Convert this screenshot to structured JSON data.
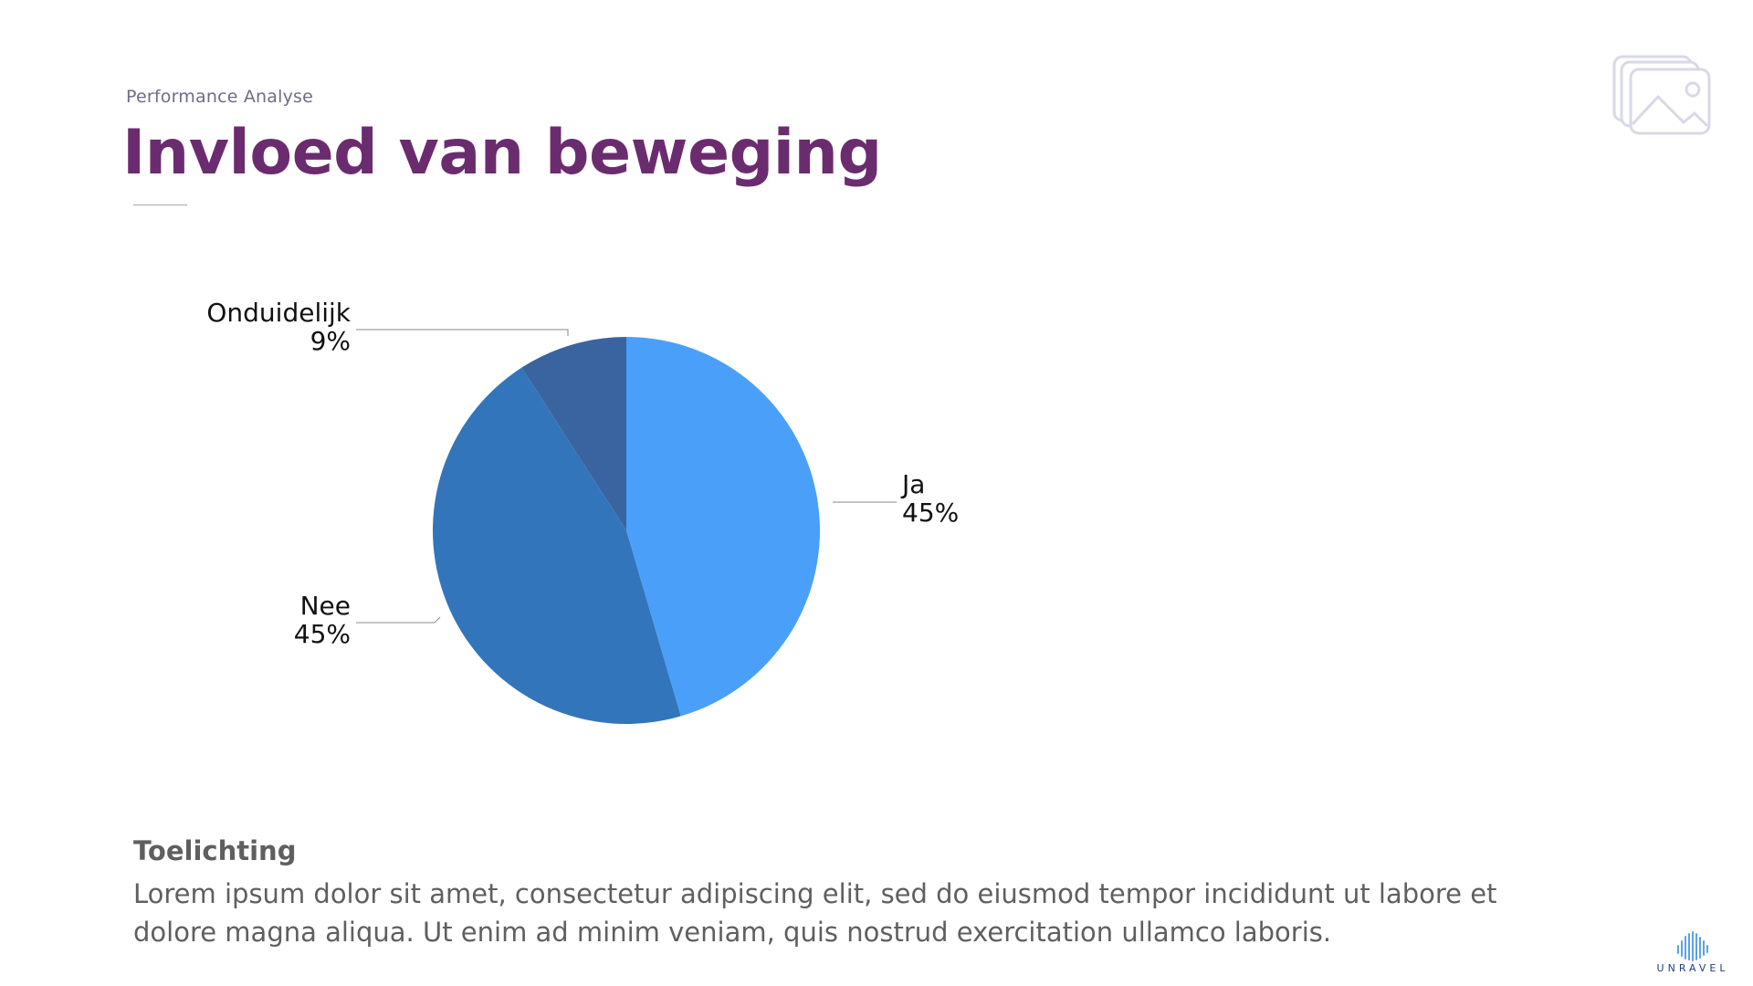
{
  "header": {
    "subtitle": "Performance Analyse",
    "title": "Invloed van beweging"
  },
  "chart_data": {
    "type": "pie",
    "categories": [
      "Ja",
      "Nee",
      "Onduidelijk"
    ],
    "values": [
      45,
      45,
      9
    ],
    "percent_labels": [
      "45%",
      "45%",
      "9%"
    ],
    "colors": [
      "#4aa0f8",
      "#3375bb",
      "#3a64a0"
    ]
  },
  "explanation": {
    "heading": "Toelichting",
    "body": "Lorem ipsum dolor sit amet, consectetur adipiscing elit, sed do eiusmod tempor incididunt ut labore et dolore magna aliqua. Ut enim ad minim veniam, quis nostrud exercitation ullamco laboris."
  },
  "icons": {
    "image_placeholder": "image-stack-icon",
    "logo": "unravel-logo"
  },
  "logo": {
    "text": "UNRAVEL"
  }
}
